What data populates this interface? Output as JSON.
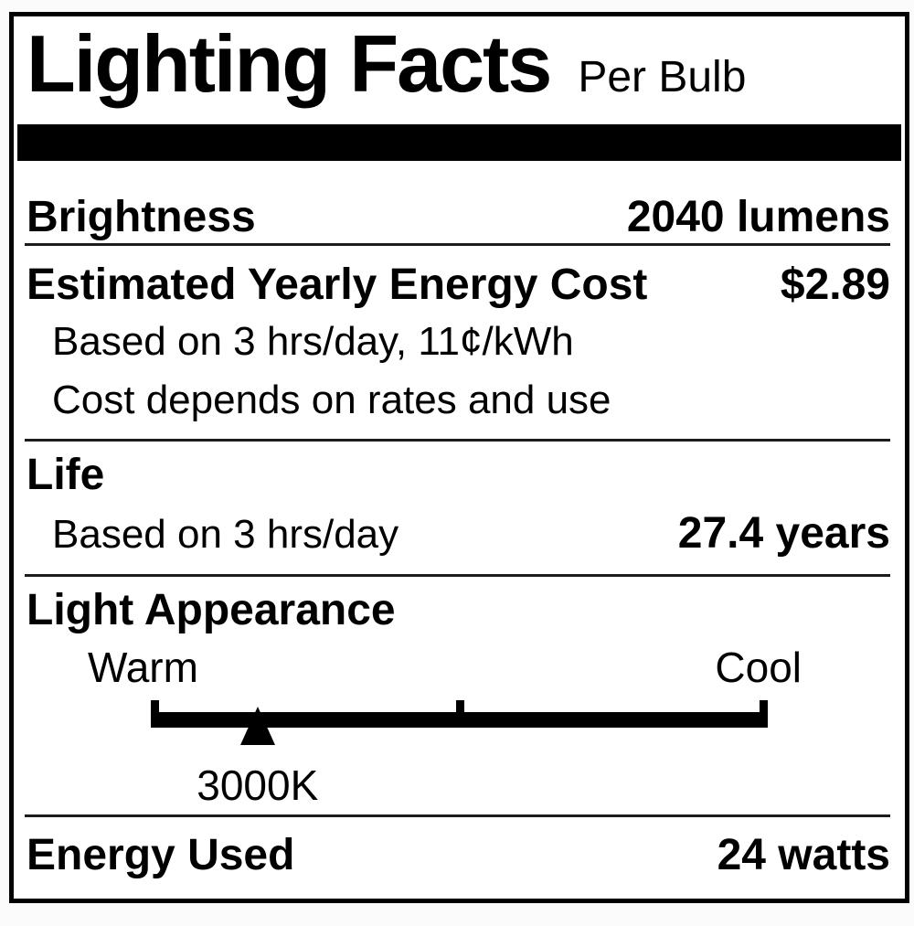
{
  "label": {
    "title": "Lighting Facts",
    "subtitle": "Per Bulb",
    "brightness": {
      "label": "Brightness",
      "value": "2040 lumens"
    },
    "energy_cost": {
      "label": "Estimated Yearly Energy Cost",
      "value": "$2.89",
      "note_basis": "Based on 3 hrs/day, 11¢/kWh",
      "note_rates": "Cost depends on rates and use"
    },
    "life": {
      "label": "Life",
      "note_basis": "Based on 3 hrs/day",
      "value": "27.4 years"
    },
    "light_appearance": {
      "label": "Light Appearance",
      "scale_left_label": "Warm",
      "scale_right_label": "Cool",
      "marker_value": "3000K",
      "marker_position_pct": 17.3
    },
    "energy_used": {
      "label": "Energy Used",
      "value": "24 watts"
    },
    "colors": {
      "text": "#000000",
      "background": "#ffffff",
      "bar": "#000000"
    }
  }
}
